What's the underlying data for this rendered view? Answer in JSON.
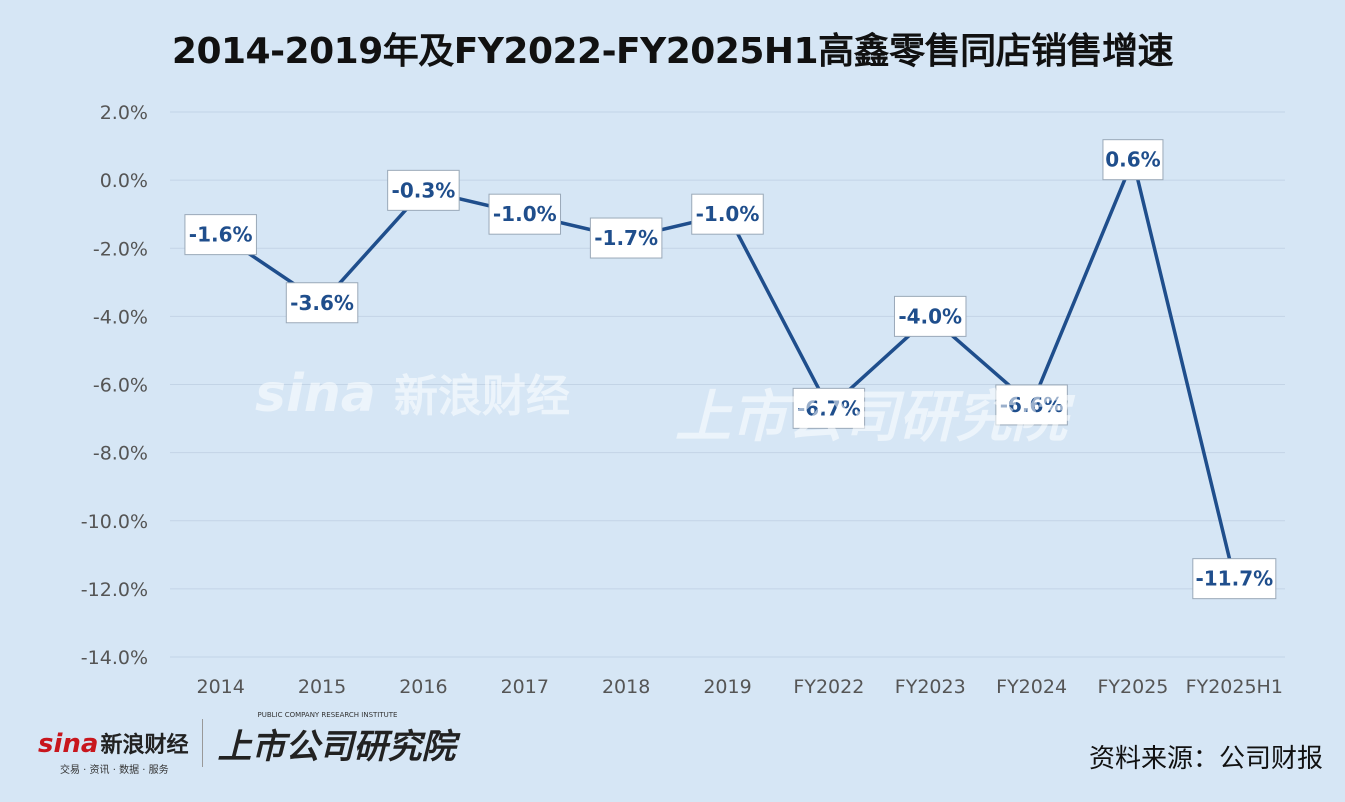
{
  "title": "2014-2019年及FY2022-FY2025H1高鑫零售同店销售增速",
  "source": "资料来源：公司财报",
  "logos": {
    "sina_mark": "sina",
    "sina_name": "新浪财经",
    "sina_sub": "交易 · 资讯 · 数据 · 服务",
    "institute_name": "上市公司研究院",
    "institute_en": "PUBLIC COMPANY RESEARCH INSTITUTE"
  },
  "colors": {
    "line": "#1f4e8c",
    "background": "#d6e6f5",
    "label_text": "#1f4e8c"
  },
  "chart_data": {
    "type": "line",
    "title": "2014-2019年及FY2022-FY2025H1高鑫零售同店销售增速",
    "categories": [
      "2014",
      "2015",
      "2016",
      "2017",
      "2018",
      "2019",
      "FY2022",
      "FY2023",
      "FY2024",
      "FY2025",
      "FY2025H1"
    ],
    "series": [
      {
        "values": [
          -1.6,
          -3.6,
          -0.3,
          -1.0,
          -1.7,
          -1.0,
          -6.7,
          -4.0,
          -6.6,
          0.6,
          -11.7
        ]
      }
    ],
    "data_labels": [
      "-1.6%",
      "-3.6%",
      "-0.3%",
      "-1.0%",
      "-1.7%",
      "-1.0%",
      "-6.7%",
      "-4.0%",
      "-6.6%",
      "0.6%",
      "-11.7%"
    ],
    "yticks": [
      2.0,
      0.0,
      -2.0,
      -4.0,
      -6.0,
      -8.0,
      -10.0,
      -12.0,
      -14.0
    ],
    "ytick_labels": [
      "2.0%",
      "0.0%",
      "-2.0%",
      "-4.0%",
      "-6.0%",
      "-8.0%",
      "-10.0%",
      "-12.0%",
      "-14.0%"
    ],
    "ylim": [
      -14,
      2
    ],
    "grid": true,
    "legend": "none"
  }
}
